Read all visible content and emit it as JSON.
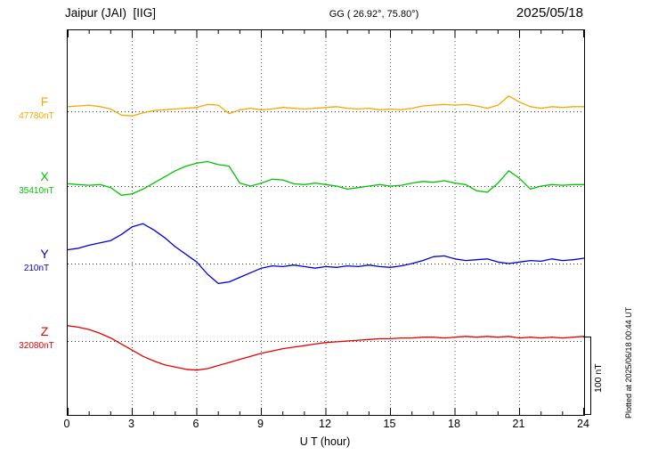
{
  "header": {
    "station": "Jaipur (JAI)  [IIG]",
    "coords": "GG ( 26.92°, 75.80°)",
    "date": "2025/05/18"
  },
  "axis": {
    "xlabel": "U T (hour)",
    "tick_labels": [
      0,
      3,
      6,
      9,
      12,
      15,
      18,
      21,
      24
    ]
  },
  "scalebar": {
    "label": "100 nT",
    "nT": 100
  },
  "footer_note": "Plotted at 2025/06/18 00:44 UT",
  "chart_data": {
    "type": "line",
    "title": "Jaipur (JAI) [IIG] magnetogram 2025/05/18",
    "xlabel": "U T (hour)",
    "xlim": [
      0,
      24
    ],
    "x_unit": "hour UT",
    "grid": "dotted vertical every 3 h, dotted baseline per trace",
    "legend_position": "left margin trace labels",
    "scale_reference_nT": 100,
    "x": [
      0,
      0.5,
      1,
      1.5,
      2,
      2.5,
      3,
      3.5,
      4,
      4.5,
      5,
      5.5,
      6,
      6.5,
      7,
      7.5,
      8,
      8.5,
      9,
      9.5,
      10,
      10.5,
      11,
      11.5,
      12,
      12.5,
      13,
      13.5,
      14,
      14.5,
      15,
      15.5,
      16,
      16.5,
      17,
      17.5,
      18,
      18.5,
      19,
      19.5,
      20,
      20.5,
      21,
      21.5,
      22,
      22.5,
      23,
      23.5,
      24
    ],
    "series": [
      {
        "name": "F",
        "color": "#F5A800",
        "baseline_label": "47780nT",
        "baseline_nT": 47780,
        "offsets_nT": [
          6,
          7,
          8,
          6,
          3,
          -5,
          -6,
          -2,
          1,
          2,
          3,
          4,
          5,
          9,
          8,
          -3,
          2,
          4,
          2,
          3,
          5,
          4,
          3,
          4,
          5,
          6,
          4,
          3,
          4,
          2,
          3,
          2,
          4,
          7,
          8,
          9,
          8,
          9,
          7,
          4,
          8,
          20,
          12,
          6,
          4,
          6,
          5,
          6,
          6
        ]
      },
      {
        "name": "X",
        "color": "#00C400",
        "baseline_label": "35410nT",
        "baseline_nT": 35410,
        "offsets_nT": [
          3,
          2,
          1,
          2,
          -2,
          -12,
          -10,
          -4,
          4,
          12,
          20,
          26,
          30,
          32,
          28,
          26,
          4,
          0,
          4,
          9,
          8,
          3,
          2,
          4,
          2,
          0,
          -4,
          -2,
          0,
          2,
          0,
          1,
          4,
          6,
          5,
          7,
          4,
          2,
          -6,
          -8,
          4,
          20,
          10,
          -4,
          0,
          2,
          1,
          2,
          2
        ]
      },
      {
        "name": "Y",
        "color": "#0000D8",
        "baseline_label": "210nT",
        "baseline_nT": 210,
        "offsets_nT": [
          18,
          20,
          24,
          27,
          30,
          38,
          48,
          52,
          44,
          34,
          22,
          12,
          2,
          -14,
          -26,
          -24,
          -18,
          -12,
          -6,
          -3,
          -4,
          -2,
          -4,
          -6,
          -4,
          -5,
          -3,
          -4,
          -2,
          -4,
          -5,
          -3,
          0,
          4,
          9,
          10,
          6,
          4,
          5,
          6,
          2,
          0,
          2,
          4,
          3,
          6,
          4,
          5,
          7
        ]
      },
      {
        "name": "Z",
        "color": "#E80000",
        "baseline_label": "32080nT",
        "baseline_nT": 32080,
        "offsets_nT": [
          20,
          18,
          15,
          10,
          4,
          -4,
          -12,
          -20,
          -26,
          -31,
          -34,
          -37,
          -38,
          -36,
          -32,
          -28,
          -24,
          -20,
          -16,
          -13,
          -10,
          -8,
          -6,
          -4,
          -2,
          -1,
          0,
          1,
          2,
          3,
          3,
          4,
          4,
          5,
          5,
          4,
          5,
          6,
          5,
          6,
          5,
          6,
          4,
          5,
          4,
          5,
          4,
          5,
          6
        ]
      }
    ]
  }
}
